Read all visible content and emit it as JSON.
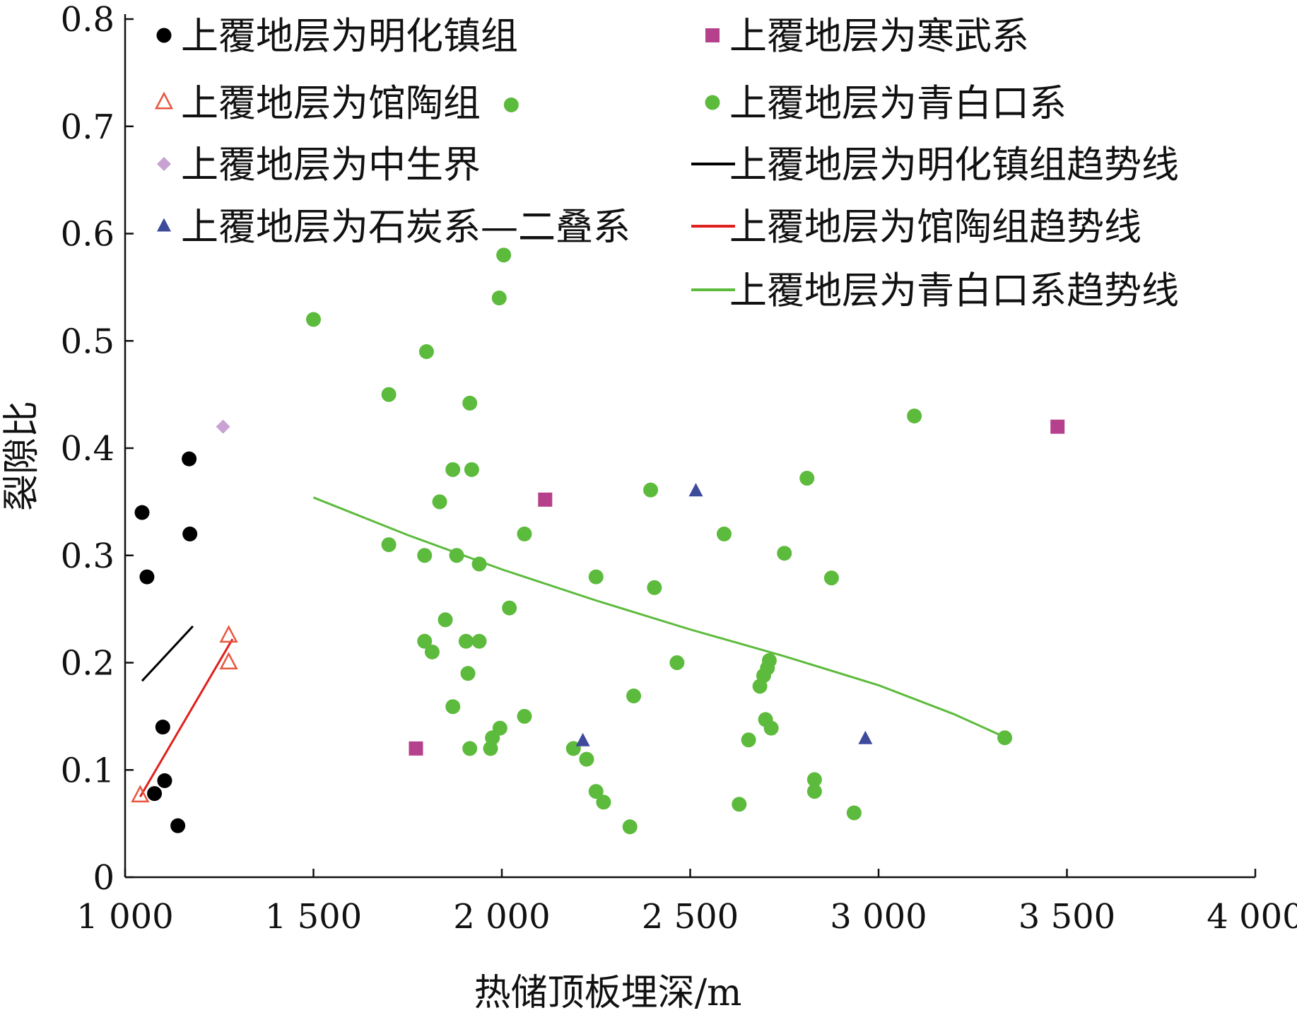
{
  "chart_data": {
    "type": "scatter",
    "xlabel": "热储顶板埋深/m",
    "ylabel": "裂隙比",
    "xlim": [
      1000,
      4000
    ],
    "ylim": [
      0,
      0.8
    ],
    "xticks": [
      1000,
      1500,
      2000,
      2500,
      3000,
      3500,
      4000
    ],
    "xtick_labels": [
      "1 000",
      "1 500",
      "2 000",
      "2 500",
      "3 000",
      "3 500",
      "4 000"
    ],
    "yticks": [
      0,
      0.1,
      0.2,
      0.3,
      0.4,
      0.5,
      0.6,
      0.7,
      0.8
    ],
    "ytick_labels": [
      "0",
      "0.1",
      "0.2",
      "0.3",
      "0.4",
      "0.5",
      "0.6",
      "0.7",
      "0.8"
    ],
    "grid": false,
    "legend_position": "top",
    "series": [
      {
        "name": "上覆地层为明化镇组",
        "marker": "circle",
        "color": "#000000",
        "points": [
          [
            1045,
            0.34
          ],
          [
            1058,
            0.28
          ],
          [
            1170,
            0.39
          ],
          [
            1172,
            0.32
          ],
          [
            1100,
            0.14
          ],
          [
            1105,
            0.09
          ],
          [
            1078,
            0.078
          ],
          [
            1140,
            0.048
          ]
        ]
      },
      {
        "name": "上覆地层为寒武系",
        "marker": "square",
        "color": "#b5418c",
        "points": [
          [
            1772,
            0.12
          ],
          [
            2115,
            0.352
          ],
          [
            3475,
            0.42
          ]
        ]
      },
      {
        "name": "上覆地层为馆陶组",
        "marker": "triangle-open",
        "color": "#e8553e",
        "points": [
          [
            1040,
            0.076
          ],
          [
            1275,
            0.225
          ],
          [
            1275,
            0.2
          ]
        ]
      },
      {
        "name": "上覆地层为青白口系",
        "marker": "circle",
        "color": "#5cbb3c",
        "points": [
          [
            2025,
            0.72
          ],
          [
            2005,
            0.58
          ],
          [
            1993,
            0.54
          ],
          [
            1500,
            0.52
          ],
          [
            1800,
            0.49
          ],
          [
            1700,
            0.45
          ],
          [
            1915,
            0.442
          ],
          [
            3095,
            0.43
          ],
          [
            1870,
            0.38
          ],
          [
            1920,
            0.38
          ],
          [
            2810,
            0.372
          ],
          [
            2395,
            0.361
          ],
          [
            1835,
            0.35
          ],
          [
            2060,
            0.32
          ],
          [
            2590,
            0.32
          ],
          [
            1700,
            0.31
          ],
          [
            1795,
            0.3
          ],
          [
            1880,
            0.3
          ],
          [
            1940,
            0.292
          ],
          [
            2750,
            0.302
          ],
          [
            2250,
            0.28
          ],
          [
            2875,
            0.279
          ],
          [
            2405,
            0.27
          ],
          [
            2020,
            0.251
          ],
          [
            1850,
            0.24
          ],
          [
            1795,
            0.22
          ],
          [
            1905,
            0.22
          ],
          [
            1940,
            0.22
          ],
          [
            1815,
            0.21
          ],
          [
            2465,
            0.2
          ],
          [
            2710,
            0.202
          ],
          [
            2705,
            0.195
          ],
          [
            2695,
            0.188
          ],
          [
            2685,
            0.178
          ],
          [
            1910,
            0.19
          ],
          [
            2350,
            0.169
          ],
          [
            1870,
            0.159
          ],
          [
            2060,
            0.15
          ],
          [
            2700,
            0.147
          ],
          [
            2715,
            0.139
          ],
          [
            1995,
            0.139
          ],
          [
            1975,
            0.13
          ],
          [
            2655,
            0.128
          ],
          [
            3335,
            0.13
          ],
          [
            1915,
            0.12
          ],
          [
            1970,
            0.12
          ],
          [
            2190,
            0.12
          ],
          [
            2225,
            0.11
          ],
          [
            2830,
            0.091
          ],
          [
            2830,
            0.08
          ],
          [
            2250,
            0.08
          ],
          [
            2270,
            0.07
          ],
          [
            2630,
            0.068
          ],
          [
            2935,
            0.06
          ],
          [
            2340,
            0.047
          ]
        ]
      },
      {
        "name": "上覆地层为中生界",
        "marker": "diamond",
        "color": "#c9a2d4",
        "points": [
          [
            1260,
            0.42
          ]
        ]
      },
      {
        "name": "上覆地层为明化镇组趋势线",
        "marker": "line",
        "color": "#000000",
        "points": [
          [
            1045,
            0.183
          ],
          [
            1180,
            0.234
          ]
        ]
      },
      {
        "name": "上覆地层为石炭系—二叠系",
        "marker": "triangle",
        "color": "#3e4a9a",
        "points": [
          [
            2515,
            0.36
          ],
          [
            2215,
            0.127
          ],
          [
            2965,
            0.129
          ]
        ]
      },
      {
        "name": "上覆地层为馆陶组趋势线",
        "marker": "line",
        "color": "#e0201c",
        "points": [
          [
            1040,
            0.075
          ],
          [
            1285,
            0.222
          ]
        ]
      },
      {
        "name": "上覆地层为青白口系趋势线",
        "marker": "line",
        "color": "#5cbb3c",
        "points": [
          [
            1500,
            0.354
          ],
          [
            1750,
            0.319
          ],
          [
            2000,
            0.287
          ],
          [
            2250,
            0.258
          ],
          [
            2500,
            0.231
          ],
          [
            2750,
            0.206
          ],
          [
            3000,
            0.179
          ],
          [
            3200,
            0.152
          ],
          [
            3320,
            0.133
          ]
        ]
      }
    ]
  }
}
